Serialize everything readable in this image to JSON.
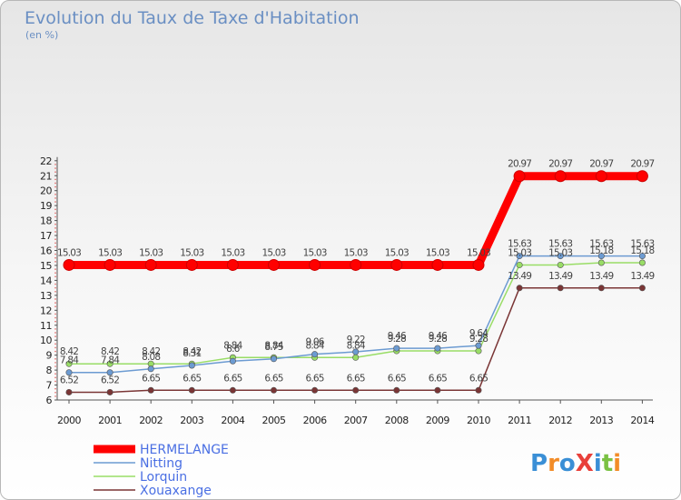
{
  "chart_data": {
    "type": "line",
    "title": "Evolution du Taux de Taxe d'Habitation",
    "subtitle": "(en %)",
    "x": [
      "2000",
      "2001",
      "2002",
      "2003",
      "2004",
      "2005",
      "2006",
      "2007",
      "2008",
      "2009",
      "2010",
      "2011",
      "2012",
      "2013",
      "2014"
    ],
    "ylim": [
      6,
      22
    ],
    "yticks": [
      6,
      7,
      8,
      9,
      10,
      11,
      12,
      13,
      14,
      15,
      16,
      17,
      18,
      19,
      20,
      21,
      22
    ],
    "grid": false,
    "legend_position": "bottom-left",
    "series": [
      {
        "name": "HERMELANGE",
        "color": "#ff0000",
        "values": [
          15.03,
          15.03,
          15.03,
          15.03,
          15.03,
          15.03,
          15.03,
          15.03,
          15.03,
          15.03,
          15.03,
          20.97,
          20.97,
          20.97,
          20.97
        ],
        "labels": [
          "15.03",
          "15.03",
          "15.03",
          "15.03",
          "15.03",
          "15.03",
          "15.03",
          "15.03",
          "15.03",
          "15.03",
          "15.03",
          "20.97",
          "20.97",
          "20.97",
          "20.97"
        ]
      },
      {
        "name": "Nitting",
        "color": "#6c9bd2",
        "values": [
          7.84,
          7.84,
          8.08,
          8.31,
          8.6,
          8.75,
          9.06,
          9.22,
          9.46,
          9.46,
          9.64,
          15.63,
          15.63,
          15.63,
          15.63
        ],
        "labels": [
          "7.84",
          "7.84",
          "8.08",
          "8.31",
          "8.6",
          "8.75",
          "9.06",
          "9.22",
          "9.46",
          "9.46",
          "9.64",
          "15.63",
          "15.63",
          "15.63",
          "15.63"
        ]
      },
      {
        "name": "Lorquin",
        "color": "#99dd66",
        "values": [
          8.42,
          8.42,
          8.42,
          8.42,
          8.84,
          8.84,
          8.84,
          8.84,
          9.28,
          9.28,
          9.28,
          15.03,
          15.03,
          15.18,
          15.18
        ],
        "labels": [
          "8.42",
          "8.42",
          "8.42",
          "8.42",
          "8.84",
          "8.84",
          "8.84",
          "8.84",
          "9.28",
          "9.28",
          "9.28",
          "15.03",
          "15.03",
          "15.18",
          "15.18"
        ]
      },
      {
        "name": "Xouaxange",
        "color": "#7a3535",
        "values": [
          6.52,
          6.52,
          6.65,
          6.65,
          6.65,
          6.65,
          6.65,
          6.65,
          6.65,
          6.65,
          6.65,
          13.49,
          13.49,
          13.49,
          13.49
        ],
        "labels": [
          "6.52",
          "6.52",
          "6.65",
          "6.65",
          "6.65",
          "6.65",
          "6.65",
          "6.65",
          "6.65",
          "6.65",
          "6.65",
          "13.49",
          "13.49",
          "13.49",
          "13.49"
        ]
      }
    ]
  },
  "brand": {
    "text": "ProXiti"
  }
}
